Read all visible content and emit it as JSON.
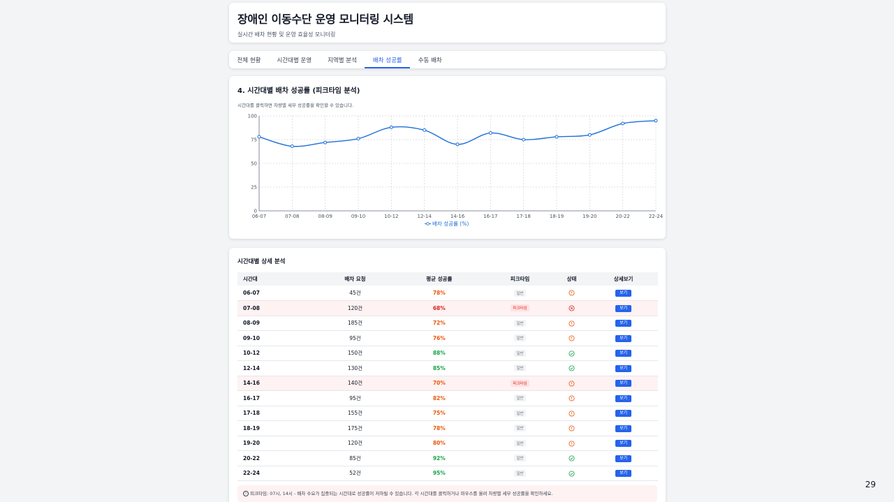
{
  "header": {
    "title": "장애인 이동수단 운영 모니터링 시스템",
    "subtitle": "실시간 배차 현황 및 운영 효율성 모니터링"
  },
  "tabs": [
    "전체 현황",
    "시간대별 운영",
    "지역별 분석",
    "배차 성공률",
    "수동 배차"
  ],
  "active_tab": 3,
  "chart_section": {
    "title": "4. 시간대별 배차 성공률 (피크타임 분석)",
    "hint": "시간대를 클릭하면 차량별 세부 성공률을 확인할 수 있습니다."
  },
  "chart_data": {
    "type": "line",
    "categories": [
      "06-07",
      "07-08",
      "08-09",
      "09-10",
      "10-12",
      "12-14",
      "14-16",
      "16-17",
      "17-18",
      "18-19",
      "19-20",
      "20-22",
      "22-24"
    ],
    "series": [
      {
        "name": "배차 성공률 (%)",
        "values": [
          78,
          68,
          72,
          76,
          88,
          85,
          70,
          82,
          75,
          78,
          80,
          92,
          95
        ]
      }
    ],
    "yticks": [
      "0",
      "25",
      "50",
      "75",
      "100"
    ],
    "ylim": [
      0,
      100
    ],
    "grid": true,
    "legend_position": "bottom",
    "color": "#1e6fd9"
  },
  "table_section": {
    "title": "시간대별 상세 분석",
    "headers": [
      "시간대",
      "배차 요청",
      "평균 성공률",
      "피크타임",
      "상태",
      "상세보기"
    ],
    "rows": [
      {
        "time": "06-07",
        "requests": "45건",
        "rate": "78%",
        "type": "일반",
        "status": "warning"
      },
      {
        "time": "07-08",
        "requests": "120건",
        "rate": "68%",
        "type": "피크타임",
        "status": "error"
      },
      {
        "time": "08-09",
        "requests": "185건",
        "rate": "72%",
        "type": "일반",
        "status": "warning"
      },
      {
        "time": "09-10",
        "requests": "95건",
        "rate": "76%",
        "type": "일반",
        "status": "warning"
      },
      {
        "time": "10-12",
        "requests": "150건",
        "rate": "88%",
        "type": "일반",
        "status": "ok"
      },
      {
        "time": "12-14",
        "requests": "130건",
        "rate": "85%",
        "type": "일반",
        "status": "ok"
      },
      {
        "time": "14-16",
        "requests": "140건",
        "rate": "70%",
        "type": "피크타임",
        "status": "warning"
      },
      {
        "time": "16-17",
        "requests": "95건",
        "rate": "82%",
        "type": "일반",
        "status": "warning"
      },
      {
        "time": "17-18",
        "requests": "155건",
        "rate": "75%",
        "type": "일반",
        "status": "warning"
      },
      {
        "time": "18-19",
        "requests": "175건",
        "rate": "78%",
        "type": "일반",
        "status": "warning"
      },
      {
        "time": "19-20",
        "requests": "120건",
        "rate": "80%",
        "type": "일반",
        "status": "warning"
      },
      {
        "time": "20-22",
        "requests": "85건",
        "rate": "92%",
        "type": "일반",
        "status": "ok"
      },
      {
        "time": "22-24",
        "requests": "52건",
        "rate": "95%",
        "type": "일반",
        "status": "ok"
      }
    ],
    "view_label": "보기",
    "note": "피크타임: 07시, 14시 - 배차 수요가 집중되는 시간대로 성공률이 저하될 수 있습니다. 각 시간대를 클릭하거나 마우스를 올려 차량별 세부 성공률을 확인하세요."
  },
  "page_number": "29"
}
